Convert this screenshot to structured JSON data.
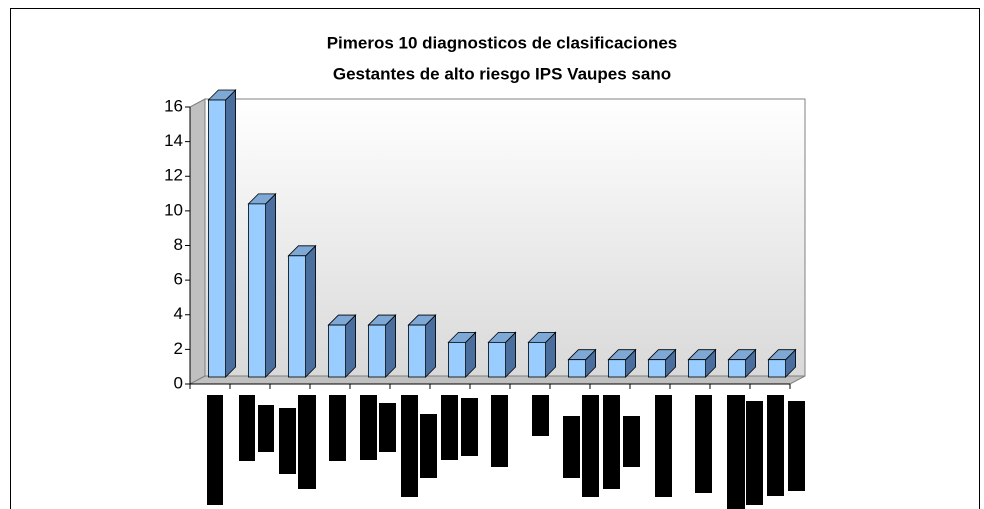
{
  "chart_data": {
    "type": "bar3d",
    "title": "Pimeros 10 diagnosticos de clasificaciones",
    "subtitle": "Gestantes de alto riesgo IPS Vaupes sano",
    "categories": [
      null,
      null,
      null,
      null,
      null,
      null,
      null,
      null,
      null,
      null,
      null,
      null,
      null,
      null,
      null
    ],
    "values": [
      16,
      10,
      7,
      3,
      3,
      3,
      2,
      2,
      2,
      1,
      1,
      1,
      1,
      1,
      1
    ],
    "color": "#99ccff",
    "ylim": [
      0,
      16
    ],
    "yticks": [
      0,
      2,
      4,
      6,
      8,
      10,
      12,
      14,
      16
    ]
  }
}
